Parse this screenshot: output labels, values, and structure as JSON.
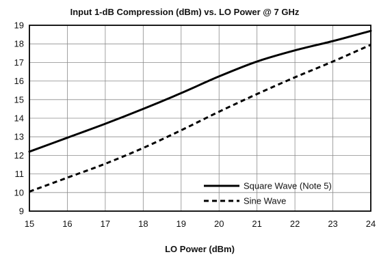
{
  "chart_data": {
    "type": "line",
    "title": "Input 1-dB Compression (dBm) vs. LO Power @ 7 GHz",
    "xlabel": "LO Power (dBm)",
    "ylabel": "",
    "xlim": [
      15,
      24
    ],
    "ylim": [
      9,
      19
    ],
    "x_ticks": [
      15,
      16,
      17,
      18,
      19,
      20,
      21,
      22,
      23,
      24
    ],
    "y_ticks": [
      9,
      10,
      11,
      12,
      13,
      14,
      15,
      16,
      17,
      18,
      19
    ],
    "grid": true,
    "legend_position": "bottom-right",
    "series": [
      {
        "name": "Square Wave (Note 5)",
        "style": "solid",
        "color": "#000000",
        "x": [
          15,
          16,
          17,
          18,
          19,
          20,
          21,
          22,
          23,
          24
        ],
        "y": [
          12.2,
          12.95,
          13.7,
          14.5,
          15.35,
          16.25,
          17.05,
          17.65,
          18.15,
          18.7
        ]
      },
      {
        "name": "Sine Wave",
        "style": "dashed",
        "color": "#000000",
        "x": [
          15,
          16,
          17,
          18,
          19,
          20,
          21,
          22,
          23,
          24
        ],
        "y": [
          10.05,
          10.8,
          11.55,
          12.4,
          13.35,
          14.35,
          15.3,
          16.2,
          17.05,
          17.95
        ]
      }
    ]
  }
}
